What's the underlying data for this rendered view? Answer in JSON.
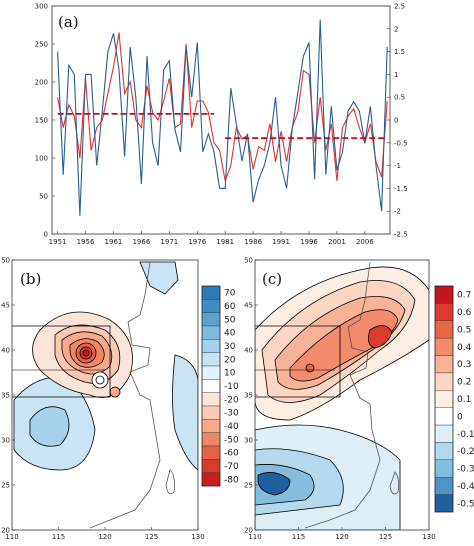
{
  "chart_data": [
    {
      "type": "line",
      "panel_label": "(a)",
      "x": [
        1951,
        1952,
        1953,
        1954,
        1955,
        1956,
        1957,
        1958,
        1959,
        1960,
        1961,
        1962,
        1963,
        1964,
        1965,
        1966,
        1967,
        1968,
        1969,
        1970,
        1971,
        1972,
        1973,
        1974,
        1975,
        1976,
        1977,
        1978,
        1979,
        1980,
        1981,
        1982,
        1983,
        1984,
        1985,
        1986,
        1987,
        1988,
        1989,
        1990,
        1991,
        1992,
        1993,
        1994,
        1995,
        1996,
        1997,
        1998,
        1999,
        2000,
        2001,
        2002,
        2003,
        2004,
        2005,
        2006,
        2007,
        2008,
        2009,
        2010
      ],
      "xticks": [
        1951,
        1956,
        1961,
        1966,
        1971,
        1976,
        1981,
        1986,
        1991,
        1996,
        2001,
        2006
      ],
      "ylim_left": [
        0,
        300
      ],
      "yticks_left": [
        0,
        50,
        100,
        150,
        200,
        250,
        300
      ],
      "ylim_right": [
        -2.5,
        2.5
      ],
      "yticks_right": [
        "2.5",
        "2",
        "1.5",
        "1",
        "0.5",
        "0",
        "-0.5",
        "-1",
        "-1.5",
        "-2",
        "-2.5"
      ],
      "series": [
        {
          "axis": "left",
          "color": "#e03030",
          "values": [
            180,
            140,
            170,
            155,
            100,
            205,
            110,
            140,
            150,
            185,
            220,
            265,
            185,
            200,
            150,
            140,
            195,
            160,
            150,
            175,
            205,
            140,
            145,
            250,
            140,
            175,
            175,
            160,
            120,
            110,
            70,
            90,
            140,
            125,
            130,
            85,
            115,
            110,
            145,
            95,
            135,
            95,
            140,
            160,
            215,
            210,
            120,
            180,
            110,
            145,
            70,
            140,
            155,
            165,
            140,
            120,
            145,
            95,
            75,
            175
          ]
        },
        {
          "axis": "right",
          "color": "#2a5d8f",
          "values": [
            1.5,
            -1.2,
            1.2,
            1.0,
            -2.1,
            1.0,
            1.0,
            -1.0,
            0.2,
            1.5,
            1.9,
            1.1,
            -0.8,
            1.6,
            0.5,
            -1.4,
            1.4,
            -0.5,
            -1.0,
            1.1,
            1.3,
            -0.2,
            -0.7,
            1.6,
            0.5,
            1.7,
            -0.7,
            -0.3,
            -0.7,
            -1.5,
            -1.5,
            0.7,
            -0.1,
            -0.9,
            -0.3,
            -1.8,
            -1.3,
            -1.0,
            -0.5,
            0.5,
            -1.0,
            -1.5,
            -0.2,
            0.6,
            1.4,
            1.7,
            -1.3,
            2.2,
            -1.2,
            0.3,
            -1.1,
            -0.7,
            0.2,
            0.4,
            0.2,
            -0.5,
            0.3,
            -1.0,
            -2.0,
            1.6
          ]
        },
        {
          "axis": "left",
          "color": "#b01818",
          "style": "dashed",
          "x": [
            1951,
            1979
          ],
          "values": [
            158,
            158
          ]
        },
        {
          "axis": "left",
          "color": "#b01818",
          "style": "dashed",
          "x": [
            1981,
            2010
          ],
          "values": [
            126,
            126
          ]
        }
      ]
    },
    {
      "type": "heatmap",
      "panel_label": "(b)",
      "xlim": [
        110,
        130
      ],
      "xticks": [
        "110",
        "115",
        "120",
        "125",
        "130"
      ],
      "ylim": [
        20,
        50
      ],
      "yticks": [
        "20",
        "25",
        "30",
        "35",
        "40",
        "45",
        "50"
      ],
      "colorbar_labels": [
        "70",
        "60",
        "50",
        "40",
        "30",
        "20",
        "10",
        "-10",
        "-20",
        "-30",
        "-40",
        "-50",
        "-60",
        "-70",
        "-80"
      ],
      "colorbar_colors": [
        "#2c7bb6",
        "#3a8dc4",
        "#5aa3d1",
        "#7fbbdf",
        "#a6d1ea",
        "#c8e3f2",
        "#e6f2f9",
        "#ffffff",
        "#fde4d8",
        "#fbc9b3",
        "#f6a98b",
        "#f08766",
        "#e56246",
        "#d63c2c",
        "#c61f1f"
      ]
    },
    {
      "type": "heatmap",
      "panel_label": "(c)",
      "xlim": [
        110,
        130
      ],
      "xticks": [
        "110",
        "115",
        "120",
        "125",
        "130"
      ],
      "ylim": [
        20,
        50
      ],
      "yticks": [
        "20",
        "25",
        "30",
        "35",
        "40",
        "45",
        "50"
      ],
      "colorbar_labels": [
        "0.7",
        "0.6",
        "0.5",
        "0.4",
        "0.3",
        "0.2",
        "0.1",
        "0",
        "-0.1",
        "-0.2",
        "-0.3",
        "-0.4",
        "-0.5"
      ],
      "colorbar_colors": [
        "#c8141c",
        "#dc3a2c",
        "#ea6446",
        "#f38c6c",
        "#f8b296",
        "#fcd6c2",
        "#fdeee4",
        "#ffffff",
        "#ddeef7",
        "#b4d8ec",
        "#86bddd",
        "#4f94c6",
        "#1f5f9f"
      ]
    }
  ]
}
